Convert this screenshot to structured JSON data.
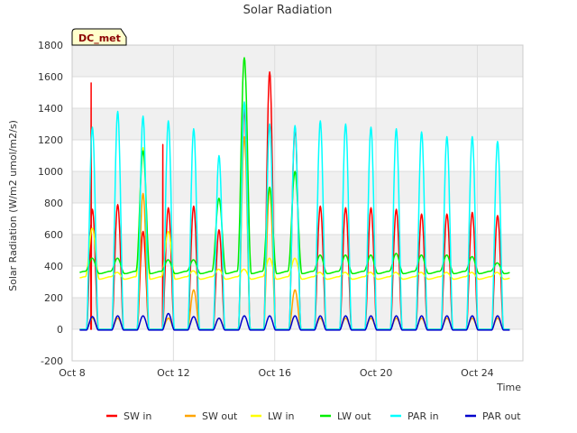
{
  "chart_data": {
    "type": "line",
    "title": "Solar Radiation",
    "badge": "DC_met",
    "xlabel": "Time",
    "ylabel": "Solar Radiation (W/m2 umol/m2/s)",
    "xlim": [
      8,
      25.8
    ],
    "ylim": [
      -200,
      1800
    ],
    "xticks": [
      {
        "v": 8,
        "label": "Oct 8"
      },
      {
        "v": 12,
        "label": "Oct 12"
      },
      {
        "v": 16,
        "label": "Oct 16"
      },
      {
        "v": 20,
        "label": "Oct 20"
      },
      {
        "v": 24,
        "label": "Oct 24"
      }
    ],
    "yticks": [
      -200,
      0,
      200,
      400,
      600,
      800,
      1000,
      1200,
      1400,
      1600,
      1800
    ],
    "grid": true,
    "legend_position": "bottom",
    "day_start": 8.3,
    "series": [
      {
        "name": "SW in",
        "color": "#ff0000",
        "kind": "peak",
        "base": 0,
        "peaks": [
          760,
          790,
          620,
          770,
          780,
          630,
          1390,
          1630,
          1270,
          780,
          770,
          770,
          760,
          730,
          730,
          740,
          720
        ],
        "spikes": [
          [
            8.75,
            1560
          ],
          [
            11.58,
            1170
          ]
        ]
      },
      {
        "name": "SW out",
        "color": "#ffa500",
        "kind": "peak",
        "base": 0,
        "peaks": [
          70,
          70,
          860,
          70,
          250,
          70,
          1220,
          900,
          250,
          70,
          70,
          70,
          70,
          70,
          70,
          70,
          70
        ],
        "spikes": []
      },
      {
        "name": "LW in",
        "color": "#ffff00",
        "kind": "baseline",
        "base": 325,
        "peaks": [
          640,
          360,
          1150,
          620,
          370,
          380,
          380,
          450,
          450,
          360,
          360,
          360,
          360,
          360,
          360,
          360,
          360
        ],
        "spikes": []
      },
      {
        "name": "LW out",
        "color": "#00ee00",
        "kind": "baseline",
        "base": 360,
        "peaks": [
          450,
          450,
          1130,
          440,
          440,
          830,
          1720,
          900,
          1000,
          470,
          470,
          470,
          480,
          470,
          470,
          460,
          420
        ],
        "spikes": []
      },
      {
        "name": "PAR in",
        "color": "#00ffff",
        "kind": "peak",
        "base": 0,
        "peaks": [
          1280,
          1380,
          1350,
          1320,
          1270,
          1100,
          1440,
          1300,
          1290,
          1320,
          1300,
          1280,
          1270,
          1250,
          1220,
          1220,
          1190
        ],
        "spikes": []
      },
      {
        "name": "PAR out",
        "color": "#0000cc",
        "kind": "peak",
        "base": -5,
        "peaks": [
          80,
          85,
          85,
          100,
          80,
          70,
          85,
          85,
          85,
          85,
          85,
          85,
          85,
          85,
          85,
          85,
          85
        ],
        "spikes": []
      }
    ]
  }
}
